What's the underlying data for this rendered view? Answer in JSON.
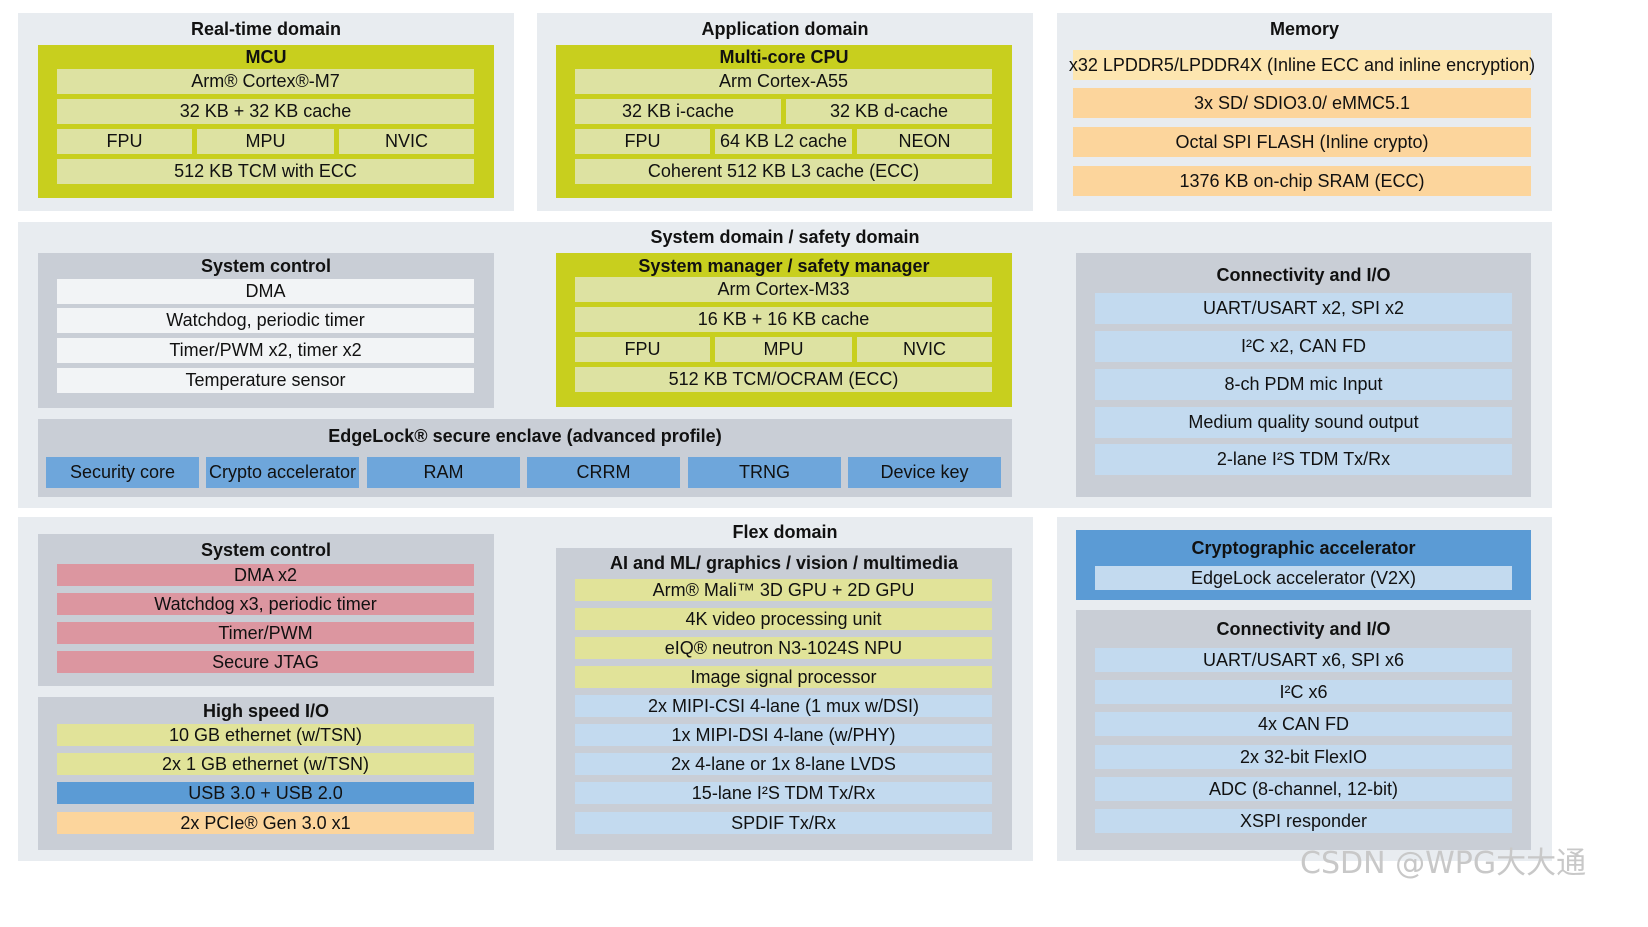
{
  "realtime": {
    "title": "Real-time domain",
    "mcu_title": "MCU",
    "rows": {
      "core": "Arm® Cortex®-M7",
      "cache": "32 KB +  32 KB cache",
      "fpu": "FPU",
      "mpu": "MPU",
      "nvic": "NVIC",
      "tcm": "512 KB TCM with ECC"
    }
  },
  "application": {
    "title": "Application domain",
    "cpu_title": "Multi-core CPU",
    "rows": {
      "core": "Arm Cortex-A55",
      "icache": "32 KB i-cache",
      "dcache": "32 KB d-cache",
      "fpu": "FPU",
      "l2": "64 KB L2 cache",
      "neon": "NEON",
      "l3": "Coherent 512 KB L3 cache (ECC)"
    }
  },
  "memory": {
    "title": "Memory",
    "items": [
      "x32 LPDDR5/LPDDR4X (Inline ECC and inline encryption)",
      "3x SD/ SDIO3.0/ eMMC5.1",
      "Octal SPI FLASH (Inline crypto)",
      "1376 KB on-chip SRAM (ECC)"
    ]
  },
  "system_domain": {
    "title": "System domain / safety domain",
    "system_control": {
      "title": "System control",
      "items": [
        "DMA",
        "Watchdog, periodic timer",
        "Timer/PWM x2, timer x2",
        "Temperature sensor"
      ]
    },
    "safety_manager": {
      "title": "System manager / safety manager",
      "core": "Arm Cortex-M33",
      "cache": "16 KB + 16 KB cache",
      "fpu": "FPU",
      "mpu": "MPU",
      "nvic": "NVIC",
      "tcm": "512 KB TCM/OCRAM (ECC)"
    },
    "edgelock": {
      "title": "EdgeLock® secure enclave (advanced profile)",
      "items": [
        "Security core",
        "Crypto accelerator",
        "RAM",
        "CRRM",
        "TRNG",
        "Device key"
      ]
    },
    "connectivity": {
      "title": "Connectivity and I/O",
      "items": [
        "UART/USART x2, SPI x2",
        "I²C x2, CAN FD",
        "8-ch PDM mic Input",
        "Medium quality sound output",
        "2-lane I²S TDM Tx/Rx"
      ]
    }
  },
  "flex": {
    "title": "Flex domain",
    "system_control": {
      "title": "System control",
      "items": [
        "DMA x2",
        "Watchdog x3, periodic timer",
        "Timer/PWM",
        "Secure JTAG"
      ]
    },
    "high_speed_io": {
      "title": "High speed I/O",
      "items": [
        "10 GB ethernet (w/TSN)",
        "2x 1 GB ethernet (w/TSN)",
        "USB 3.0 + USB 2.0",
        "2x PCIe® Gen 3.0 x1"
      ]
    },
    "multimedia": {
      "title": "AI and ML/ graphics / vision / multimedia",
      "items": [
        "Arm® Mali™ 3D GPU + 2D GPU",
        "4K video processing unit",
        "eIQ® neutron N3-1024S NPU",
        "Image signal processor",
        "2x MIPI-CSI 4-lane (1 mux w/DSI)",
        "1x MIPI-DSI 4-lane (w/PHY)",
        "2x 4-lane or 1x 8-lane LVDS",
        "15-lane I²S TDM Tx/Rx",
        "SPDIF Tx/Rx"
      ]
    }
  },
  "crypto": {
    "title": "Cryptographic accelerator",
    "item": "EdgeLock accelerator (V2X)"
  },
  "connectivity2": {
    "title": "Connectivity and I/O",
    "items": [
      "UART/USART x6, SPI x6",
      "I²C x6",
      "4x CAN FD",
      "2x 32-bit FlexIO",
      "ADC (8-channel, 12-bit)",
      "XSPI responder"
    ]
  },
  "watermark": "CSDN @WPG大大通",
  "colors": {
    "panel": "#e8ecf0",
    "subpanel": "#c9ced6",
    "lime": "#c8cf1e",
    "light_yellow": "#dde2a2",
    "pink": "#dc96a0",
    "light_blue": "#c3daef",
    "blue": "#5b9bd5",
    "orange": "#fcd59c"
  }
}
